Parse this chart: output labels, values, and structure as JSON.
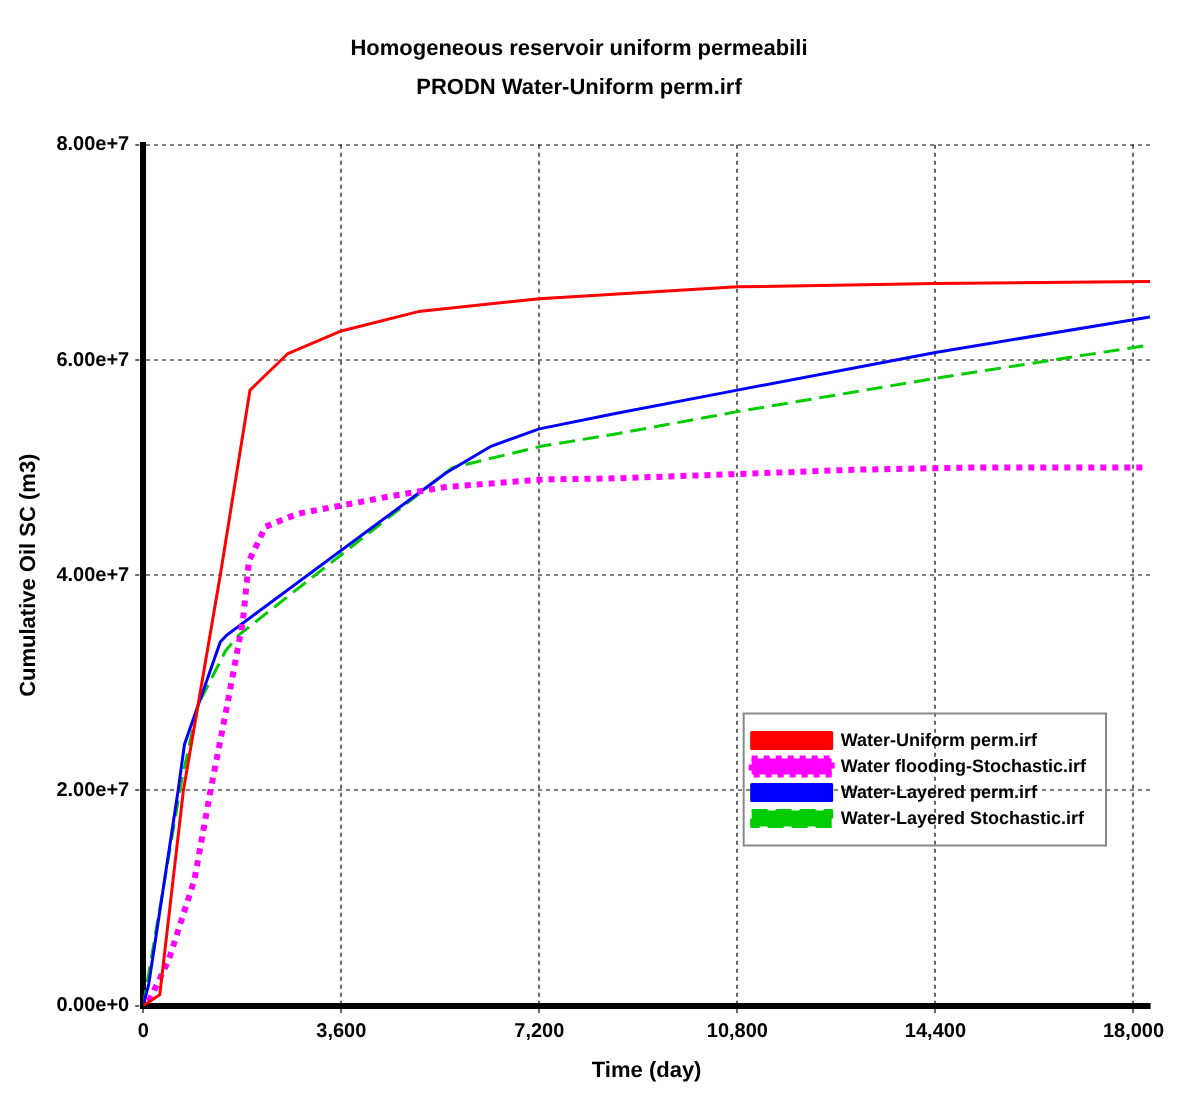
{
  "chart_data": {
    "type": "line",
    "title": "Homogeneous reservoir uniform permeabili",
    "subtitle": "PRODN Water-Uniform perm.irf",
    "xlabel": "Time (day)",
    "ylabel": "Cumulative Oil SC (m3)",
    "xlim": [
      0,
      18300
    ],
    "ylim": [
      0,
      80000000
    ],
    "xticks": [
      {
        "value": 0,
        "label": "0"
      },
      {
        "value": 3600,
        "label": "3,600"
      },
      {
        "value": 7200,
        "label": "7,200"
      },
      {
        "value": 10800,
        "label": "10,800"
      },
      {
        "value": 14400,
        "label": "14,400"
      },
      {
        "value": 18000,
        "label": "18,000"
      }
    ],
    "yticks": [
      {
        "value": 0,
        "label": "0.00e+0"
      },
      {
        "value": 20000000,
        "label": "2.00e+7"
      },
      {
        "value": 40000000,
        "label": "4.00e+7"
      },
      {
        "value": 60000000,
        "label": "6.00e+7"
      },
      {
        "value": 80000000,
        "label": "8.00e+7"
      }
    ],
    "grid": true,
    "legend": "bottom right",
    "marker": "none",
    "series": [
      {
        "name": "Water-Uniform perm.irf",
        "color": "#ff0000",
        "line_style": "solid",
        "x": [
          0,
          300,
          730,
          1400,
          1940,
          2630,
          3600,
          5000,
          7200,
          10800,
          14400,
          18300
        ],
        "values": [
          0,
          1000000,
          20000000,
          40000000,
          57200000,
          60600000,
          62700000,
          64500000,
          65700000,
          66800000,
          67100000,
          67300000
        ]
      },
      {
        "name": "Water flooding-Stochastic.irf",
        "color": "#ff00ff",
        "line_style": "dotted",
        "x": [
          100,
          460,
          930,
          1220,
          1510,
          1810,
          1920,
          2220,
          2800,
          4450,
          5500,
          7270,
          8560,
          10800,
          12900,
          14960,
          18180
        ],
        "values": [
          400000,
          4200000,
          11700000,
          19900000,
          27500000,
          35700000,
          41300000,
          44500000,
          45700000,
          47300000,
          48200000,
          48900000,
          49000000,
          49400000,
          49800000,
          50000000,
          50000000
        ]
      },
      {
        "name": "Water-Layered perm.irf",
        "color": "#0000ff",
        "line_style": "solid",
        "x": [
          0,
          100,
          634,
          750,
          1400,
          1510,
          5500,
          6330,
          7200,
          8560,
          10800,
          14400,
          18300
        ],
        "values": [
          0,
          2000000,
          20000000,
          24300000,
          33800000,
          34400000,
          49500000,
          52000000,
          53600000,
          55000000,
          57200000,
          60700000,
          64000000
        ]
      },
      {
        "name": "Water-Layered Stochastic.irf",
        "color": "#00cc00",
        "line_style": "dashed",
        "x": [
          0,
          300,
          700,
          1000,
          1500,
          1750,
          5620,
          7250,
          8560,
          10800,
          14400,
          18300
        ],
        "values": [
          0,
          9000000,
          21000000,
          28000000,
          33000000,
          34500000,
          50000000,
          52000000,
          53100000,
          55200000,
          58300000,
          61400000
        ]
      }
    ]
  }
}
